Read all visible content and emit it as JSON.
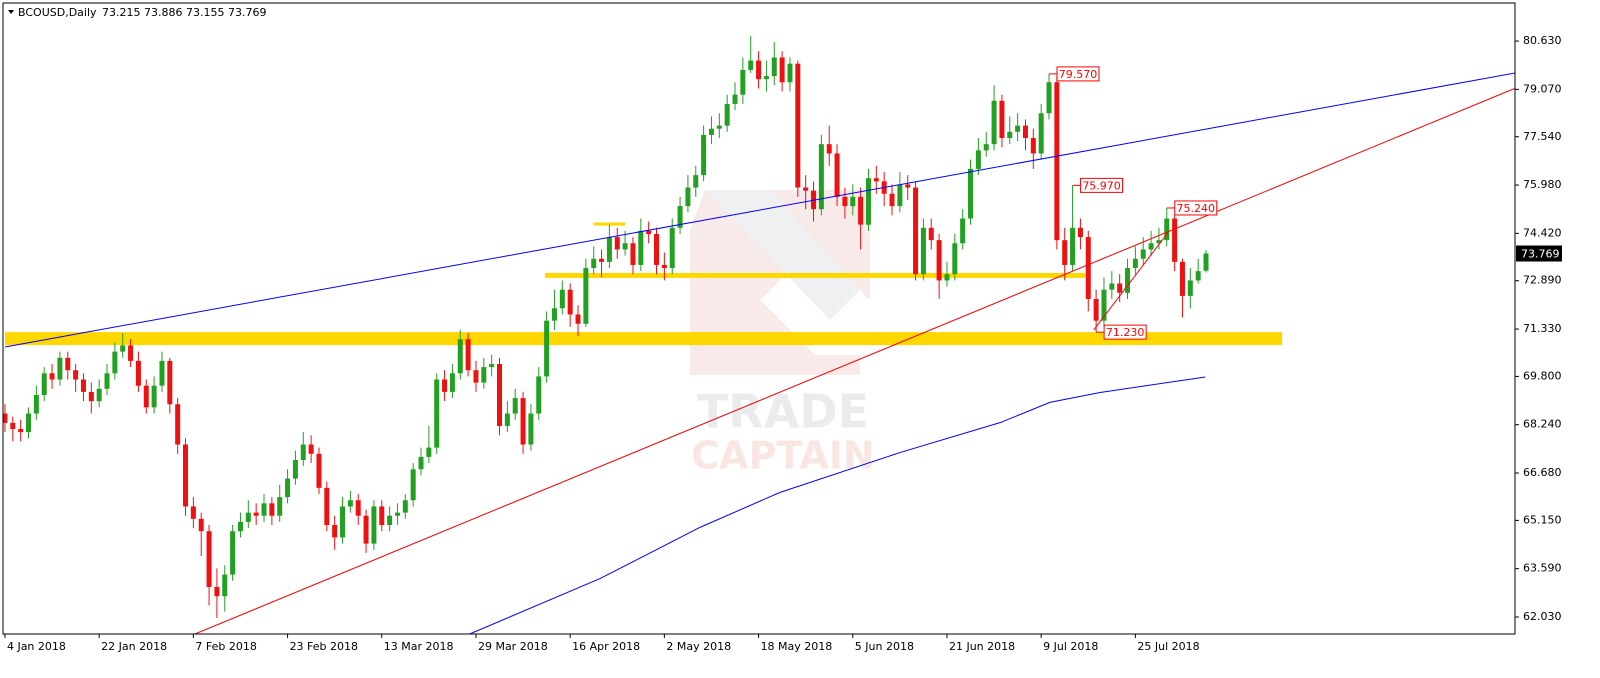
{
  "header": {
    "symbol": "BCOUSD,Daily",
    "ohlc_label": "73.215 73.886 73.155 73.769"
  },
  "watermark": {
    "line1": "TRADE",
    "line2": "CAPTAIN"
  },
  "chart_data": {
    "type": "candlestick",
    "categories": [
      "4 Jan 2018",
      null,
      null,
      null,
      null,
      null,
      null,
      null,
      null,
      null,
      null,
      null,
      "22 Jan 2018",
      null,
      null,
      null,
      null,
      null,
      null,
      null,
      null,
      null,
      null,
      null,
      "7 Feb 2018",
      null,
      null,
      null,
      null,
      null,
      null,
      null,
      null,
      null,
      null,
      null,
      "23 Feb 2018",
      null,
      null,
      null,
      null,
      null,
      null,
      null,
      null,
      null,
      null,
      null,
      "13 Mar 2018",
      null,
      null,
      null,
      null,
      null,
      null,
      null,
      null,
      null,
      null,
      null,
      "29 Mar 2018",
      null,
      null,
      null,
      null,
      null,
      null,
      null,
      null,
      null,
      null,
      null,
      "16 Apr 2018",
      null,
      null,
      null,
      null,
      null,
      null,
      null,
      null,
      null,
      null,
      null,
      "2 May 2018",
      null,
      null,
      null,
      null,
      null,
      null,
      null,
      null,
      null,
      null,
      null,
      "18 May 2018",
      null,
      null,
      null,
      null,
      null,
      null,
      null,
      null,
      null,
      null,
      null,
      "5 Jun 2018",
      null,
      null,
      null,
      null,
      null,
      null,
      null,
      null,
      null,
      null,
      null,
      "21 Jun 2018",
      null,
      null,
      null,
      null,
      null,
      null,
      null,
      null,
      null,
      null,
      null,
      "9 Jul 2018",
      null,
      null,
      null,
      null,
      null,
      null,
      null,
      null,
      null,
      null,
      null,
      "25 Jul 2018",
      null,
      null,
      null,
      null,
      null,
      null,
      null,
      null,
      null
    ],
    "ohlc": [
      [
        68.6,
        68.9,
        68.0,
        68.3
      ],
      [
        68.3,
        68.5,
        67.7,
        68.1
      ],
      [
        68.1,
        68.4,
        67.7,
        68.0
      ],
      [
        68.0,
        68.8,
        67.8,
        68.6
      ],
      [
        68.6,
        69.5,
        68.4,
        69.2
      ],
      [
        69.2,
        70.1,
        69.0,
        69.9
      ],
      [
        69.9,
        70.2,
        69.4,
        69.7
      ],
      [
        69.7,
        70.6,
        69.5,
        70.4
      ],
      [
        70.4,
        70.6,
        69.7,
        70.0
      ],
      [
        70.0,
        70.2,
        69.3,
        69.7
      ],
      [
        69.7,
        69.9,
        69.0,
        69.3
      ],
      [
        69.3,
        69.6,
        68.6,
        69.0
      ],
      [
        69.0,
        69.7,
        68.8,
        69.4
      ],
      [
        69.4,
        70.2,
        69.2,
        69.9
      ],
      [
        69.9,
        70.9,
        69.7,
        70.6
      ],
      [
        70.6,
        71.2,
        70.4,
        70.8
      ],
      [
        70.8,
        71.0,
        70.1,
        70.3
      ],
      [
        70.3,
        70.6,
        69.3,
        69.5
      ],
      [
        69.5,
        69.7,
        68.6,
        68.8
      ],
      [
        68.8,
        69.8,
        68.6,
        69.5
      ],
      [
        69.5,
        70.6,
        69.3,
        70.3
      ],
      [
        70.3,
        70.4,
        68.6,
        68.9
      ],
      [
        68.9,
        69.1,
        67.3,
        67.6
      ],
      [
        67.6,
        67.8,
        65.3,
        65.6
      ],
      [
        65.6,
        65.9,
        64.9,
        65.2
      ],
      [
        65.2,
        65.4,
        64.0,
        64.8
      ],
      [
        64.8,
        65.0,
        62.4,
        63.0
      ],
      [
        63.0,
        63.6,
        62.0,
        62.7
      ],
      [
        62.7,
        63.7,
        62.2,
        63.4
      ],
      [
        63.4,
        65.0,
        63.2,
        64.8
      ],
      [
        64.8,
        65.4,
        64.6,
        65.1
      ],
      [
        65.1,
        65.8,
        64.9,
        65.4
      ],
      [
        65.4,
        65.7,
        65.0,
        65.3
      ],
      [
        65.3,
        66.0,
        65.1,
        65.7
      ],
      [
        65.7,
        65.9,
        65.0,
        65.3
      ],
      [
        65.3,
        66.3,
        65.1,
        65.9
      ],
      [
        65.9,
        66.8,
        65.7,
        66.5
      ],
      [
        66.5,
        67.4,
        66.3,
        67.1
      ],
      [
        67.1,
        68.0,
        66.9,
        67.6
      ],
      [
        67.6,
        67.9,
        67.0,
        67.3
      ],
      [
        67.3,
        67.5,
        66.0,
        66.2
      ],
      [
        66.2,
        66.4,
        64.8,
        65.0
      ],
      [
        65.0,
        65.3,
        64.2,
        64.6
      ],
      [
        64.6,
        65.9,
        64.4,
        65.6
      ],
      [
        65.6,
        66.1,
        65.4,
        65.8
      ],
      [
        65.8,
        66.0,
        65.0,
        65.3
      ],
      [
        65.3,
        65.5,
        64.1,
        64.4
      ],
      [
        64.4,
        65.8,
        64.2,
        65.6
      ],
      [
        65.6,
        65.8,
        64.8,
        65.0
      ],
      [
        65.0,
        65.6,
        64.8,
        65.3
      ],
      [
        65.3,
        65.7,
        65.0,
        65.4
      ],
      [
        65.4,
        66.0,
        65.2,
        65.8
      ],
      [
        65.8,
        67.0,
        65.6,
        66.8
      ],
      [
        66.8,
        67.5,
        66.6,
        67.2
      ],
      [
        67.2,
        68.2,
        67.0,
        67.5
      ],
      [
        67.5,
        69.9,
        67.3,
        69.7
      ],
      [
        69.7,
        70.0,
        69.0,
        69.3
      ],
      [
        69.3,
        70.2,
        69.1,
        69.9
      ],
      [
        69.9,
        71.3,
        69.7,
        71.0
      ],
      [
        71.0,
        71.2,
        69.8,
        70.0
      ],
      [
        70.0,
        70.3,
        69.3,
        69.6
      ],
      [
        69.6,
        70.4,
        69.4,
        70.1
      ],
      [
        70.1,
        70.5,
        69.8,
        70.2
      ],
      [
        70.2,
        70.4,
        67.9,
        68.2
      ],
      [
        68.2,
        69.0,
        68.0,
        68.6
      ],
      [
        68.6,
        69.4,
        68.4,
        69.1
      ],
      [
        69.1,
        69.3,
        67.3,
        67.6
      ],
      [
        67.6,
        68.9,
        67.4,
        68.6
      ],
      [
        68.6,
        70.1,
        68.4,
        69.8
      ],
      [
        69.8,
        71.9,
        69.6,
        71.6
      ],
      [
        71.6,
        72.6,
        71.3,
        72.0
      ],
      [
        72.0,
        72.9,
        71.8,
        72.6
      ],
      [
        72.6,
        72.8,
        71.4,
        71.8
      ],
      [
        71.8,
        72.1,
        71.1,
        71.5
      ],
      [
        71.5,
        73.6,
        71.4,
        73.3
      ],
      [
        73.3,
        74.0,
        73.1,
        73.6
      ],
      [
        73.6,
        73.9,
        73.0,
        73.5
      ],
      [
        73.5,
        74.7,
        73.3,
        74.3
      ],
      [
        74.3,
        74.6,
        73.6,
        73.9
      ],
      [
        73.9,
        74.5,
        73.7,
        74.1
      ],
      [
        74.1,
        74.3,
        73.1,
        73.4
      ],
      [
        73.4,
        74.9,
        73.2,
        74.5
      ],
      [
        74.5,
        74.8,
        74.1,
        74.4
      ],
      [
        74.4,
        74.6,
        73.1,
        73.4
      ],
      [
        73.4,
        73.8,
        72.9,
        73.3
      ],
      [
        73.3,
        74.9,
        73.1,
        74.6
      ],
      [
        74.6,
        75.6,
        74.4,
        75.3
      ],
      [
        75.3,
        76.3,
        75.1,
        75.9
      ],
      [
        75.9,
        76.6,
        75.6,
        76.3
      ],
      [
        76.3,
        77.9,
        76.1,
        77.6
      ],
      [
        77.6,
        78.2,
        77.3,
        77.8
      ],
      [
        77.8,
        78.3,
        77.5,
        77.9
      ],
      [
        77.9,
        78.9,
        77.7,
        78.6
      ],
      [
        78.6,
        79.3,
        78.4,
        78.9
      ],
      [
        78.9,
        80.1,
        78.6,
        79.7
      ],
      [
        79.7,
        80.8,
        79.6,
        80.0
      ],
      [
        80.0,
        80.3,
        79.1,
        79.4
      ],
      [
        79.4,
        80.0,
        79.0,
        79.5
      ],
      [
        79.5,
        80.6,
        79.2,
        80.1
      ],
      [
        80.1,
        80.3,
        79.0,
        79.3
      ],
      [
        79.3,
        80.1,
        79.0,
        79.9
      ],
      [
        79.9,
        80.0,
        75.6,
        75.9
      ],
      [
        75.9,
        76.3,
        75.2,
        75.8
      ],
      [
        75.8,
        76.1,
        74.8,
        75.2
      ],
      [
        75.2,
        77.6,
        75.0,
        77.3
      ],
      [
        77.3,
        77.9,
        76.6,
        77.0
      ],
      [
        77.0,
        77.3,
        75.3,
        75.6
      ],
      [
        75.6,
        75.9,
        74.9,
        75.3
      ],
      [
        75.3,
        76.0,
        75.0,
        75.6
      ],
      [
        75.6,
        75.9,
        73.9,
        74.7
      ],
      [
        74.7,
        76.5,
        74.5,
        76.2
      ],
      [
        76.2,
        76.6,
        75.7,
        76.1
      ],
      [
        76.1,
        76.4,
        75.3,
        75.7
      ],
      [
        75.7,
        76.0,
        75.0,
        75.3
      ],
      [
        75.3,
        76.4,
        75.1,
        76.0
      ],
      [
        76.0,
        76.3,
        75.5,
        75.9
      ],
      [
        75.9,
        76.1,
        72.9,
        73.1
      ],
      [
        73.1,
        74.9,
        72.9,
        74.6
      ],
      [
        74.6,
        74.9,
        73.9,
        74.2
      ],
      [
        74.2,
        74.4,
        72.3,
        72.9
      ],
      [
        72.9,
        73.5,
        72.7,
        73.1
      ],
      [
        73.1,
        74.4,
        72.9,
        74.1
      ],
      [
        74.1,
        75.2,
        73.9,
        74.9
      ],
      [
        74.9,
        76.8,
        74.7,
        76.5
      ],
      [
        76.5,
        77.5,
        76.3,
        77.1
      ],
      [
        77.1,
        77.7,
        76.9,
        77.3
      ],
      [
        77.3,
        79.2,
        77.1,
        78.7
      ],
      [
        78.7,
        78.9,
        77.2,
        77.5
      ],
      [
        77.5,
        78.2,
        77.3,
        77.7
      ],
      [
        77.7,
        78.3,
        77.4,
        77.9
      ],
      [
        77.9,
        78.1,
        77.1,
        77.5
      ],
      [
        77.5,
        77.8,
        76.5,
        77.0
      ],
      [
        77.0,
        78.6,
        76.8,
        78.3
      ],
      [
        78.3,
        79.57,
        78.1,
        79.3
      ],
      [
        79.3,
        79.5,
        73.9,
        74.2
      ],
      [
        74.2,
        74.6,
        72.9,
        73.4
      ],
      [
        73.4,
        75.97,
        73.2,
        74.6
      ],
      [
        74.6,
        74.9,
        73.9,
        74.3
      ],
      [
        74.3,
        74.5,
        71.9,
        72.3
      ],
      [
        72.3,
        72.6,
        71.23,
        71.6
      ],
      [
        71.6,
        73.0,
        71.4,
        72.6
      ],
      [
        72.6,
        73.2,
        72.3,
        72.8
      ],
      [
        72.8,
        73.1,
        72.2,
        72.5
      ],
      [
        72.5,
        73.6,
        72.3,
        73.3
      ],
      [
        73.3,
        74.0,
        73.1,
        73.6
      ],
      [
        73.6,
        74.3,
        73.4,
        73.9
      ],
      [
        73.9,
        74.5,
        73.7,
        74.1
      ],
      [
        74.1,
        74.6,
        73.9,
        74.2
      ],
      [
        74.2,
        75.24,
        74.0,
        74.9
      ],
      [
        74.9,
        75.0,
        73.2,
        73.5
      ],
      [
        73.5,
        73.6,
        71.7,
        72.4
      ],
      [
        72.4,
        73.3,
        72.0,
        72.9
      ],
      [
        72.9,
        73.6,
        72.8,
        73.2
      ],
      [
        73.215,
        73.886,
        73.155,
        73.769
      ]
    ],
    "up_color": "#22a022",
    "down_color": "#ee1111",
    "xlim": [
      -0.25,
      192.36
    ],
    "ylim": [
      61.48,
      81.86
    ],
    "yticks": [
      {
        "value": 80.63,
        "label": "80.630"
      },
      {
        "value": 79.07,
        "label": "79.070"
      },
      {
        "value": 77.54,
        "label": "77.540"
      },
      {
        "value": 75.98,
        "label": "75.980"
      },
      {
        "value": 74.42,
        "label": "74.420"
      },
      {
        "value": 72.89,
        "label": "72.890"
      },
      {
        "value": 71.33,
        "label": "71.330"
      },
      {
        "value": 69.8,
        "label": "69.800"
      },
      {
        "value": 68.24,
        "label": "68.240"
      },
      {
        "value": 66.68,
        "label": "66.680"
      },
      {
        "value": 65.15,
        "label": "65.150"
      },
      {
        "value": 63.59,
        "label": "63.590"
      },
      {
        "value": 62.03,
        "label": "62.030"
      }
    ],
    "last_price": {
      "value": 73.769,
      "label": "73.769"
    },
    "annotations": [
      {
        "value": 79.57,
        "label": "79.570",
        "at": 133
      },
      {
        "value": 75.97,
        "label": "75.970",
        "at": 136
      },
      {
        "value": 75.24,
        "label": "75.240",
        "at": 148
      },
      {
        "value": 71.23,
        "label": "71.230",
        "at": 139
      }
    ],
    "zones": [
      {
        "color": "#ffd700",
        "x": [
          0,
          162.7
        ],
        "y": [
          70.81,
          71.23
        ]
      },
      {
        "color": "#ffd700",
        "x": [
          68.8,
          137.6
        ],
        "y": [
          72.98,
          73.14
        ]
      },
      {
        "color": "#ffd700",
        "x": [
          75,
          79
        ],
        "y": [
          74.67,
          74.77
        ]
      }
    ],
    "lines": [
      {
        "color": "#0000ff",
        "x": [
          0,
          192.4
        ],
        "y": [
          70.75,
          79.6
        ]
      },
      {
        "color": "#ff0000",
        "x": [
          24.2,
          192.4
        ],
        "y": [
          61.48,
          79.11
        ]
      },
      {
        "color": "#ff0000",
        "x": [
          138.7,
          148.2
        ],
        "y": [
          71.3,
          74.46
        ]
      },
      {
        "color": "#0000ff",
        "x": [
          59.2,
          75.8,
          88.5,
          98.7,
          114,
          126.8,
          133.1,
          139.5,
          152.9
        ],
        "y": [
          61.48,
          63.27,
          64.92,
          66.05,
          67.34,
          68.31,
          68.96,
          69.28,
          69.78
        ]
      }
    ]
  }
}
